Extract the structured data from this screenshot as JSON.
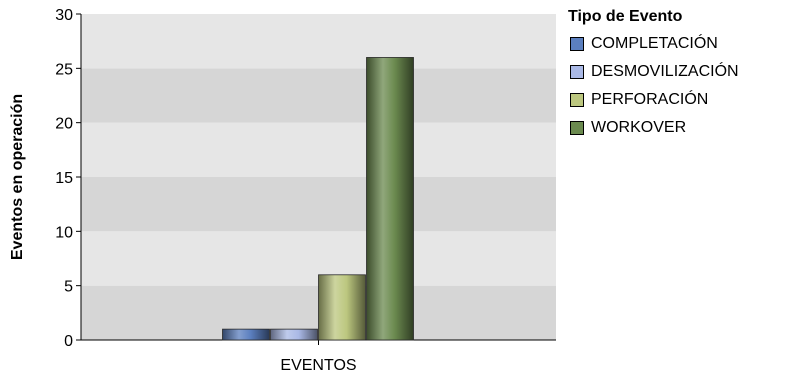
{
  "chart_data": {
    "type": "bar",
    "categories": [
      "EVENTOS"
    ],
    "series": [
      {
        "name": "COMPLETACIÓN",
        "values": [
          1
        ],
        "color": "#5b7fbf"
      },
      {
        "name": "DESMOVILIZACIÓN",
        "values": [
          1
        ],
        "color": "#aab9e6"
      },
      {
        "name": "PERFORACIÓN",
        "values": [
          6
        ],
        "color": "#bcc77f"
      },
      {
        "name": "WORKOVER",
        "values": [
          26
        ],
        "color": "#6b8a4f"
      }
    ],
    "title": "",
    "xlabel": "",
    "ylabel": "Eventos en operación",
    "ylim": [
      0,
      30
    ],
    "yticks": [
      0,
      5,
      10,
      15,
      20,
      25,
      30
    ],
    "grid": "horizontal-bands",
    "legend_title": "Tipo de Evento",
    "legend_position": "right"
  }
}
